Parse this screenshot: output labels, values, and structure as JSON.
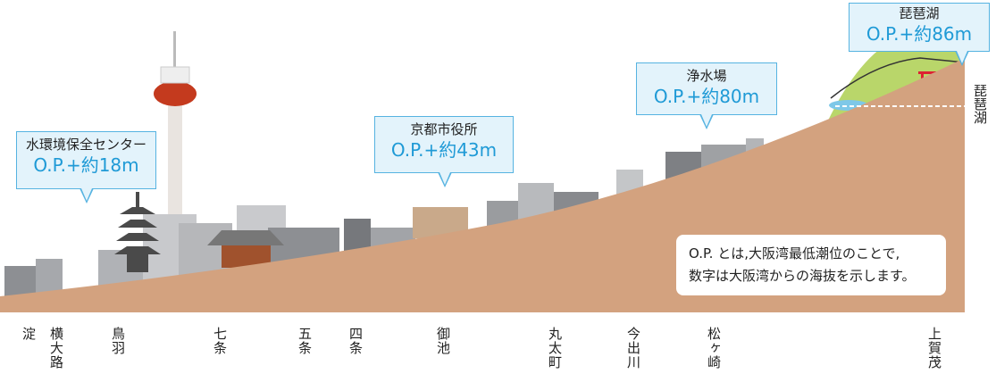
{
  "callouts": [
    {
      "name": "水環境保全センター",
      "elevation": "O.P.+約18m"
    },
    {
      "name": "京都市役所",
      "elevation": "O.P.+約43m"
    },
    {
      "name": "浄水場",
      "elevation": "O.P.+約80m"
    },
    {
      "name": "琵琶湖",
      "elevation": "O.P.+約86m"
    }
  ],
  "side_label": "琵琶湖",
  "note": {
    "lines": [
      "O.P. とは,大阪湾最低潮位のことで,",
      "数字は大阪湾からの海抜を示します。"
    ]
  },
  "places": [
    "淀",
    "横大路",
    "鳥羽",
    "七条",
    "五条",
    "四条",
    "御池",
    "丸太町",
    "今出川",
    "松ヶ崎",
    "上賀茂"
  ]
}
